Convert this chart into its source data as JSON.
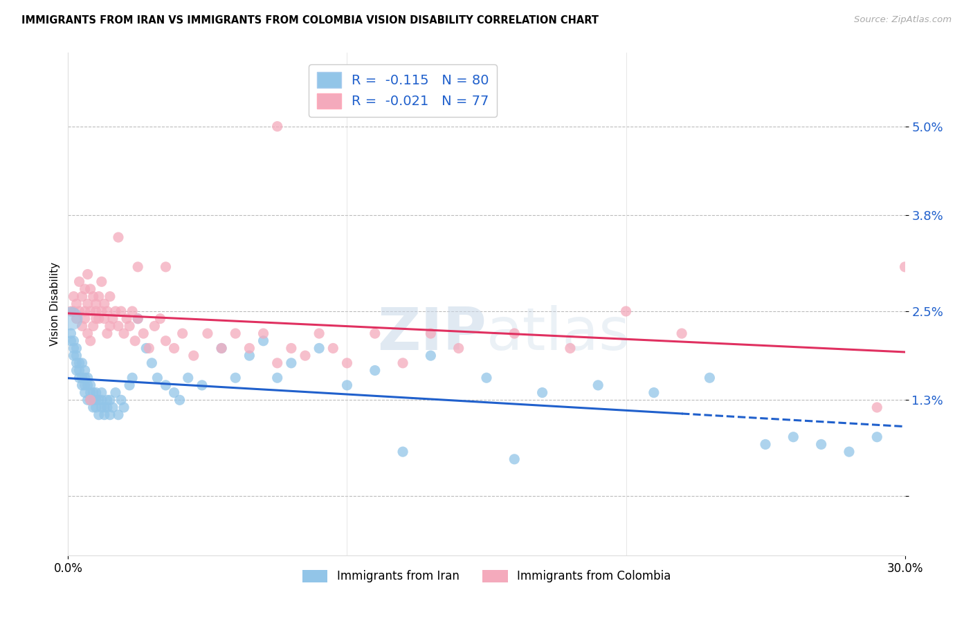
{
  "title": "IMMIGRANTS FROM IRAN VS IMMIGRANTS FROM COLOMBIA VISION DISABILITY CORRELATION CHART",
  "source": "Source: ZipAtlas.com",
  "ylabel": "Vision Disability",
  "xlim": [
    0.0,
    0.3
  ],
  "ylim": [
    -0.008,
    0.06
  ],
  "ytick_positions": [
    0.0,
    0.013,
    0.025,
    0.038,
    0.05
  ],
  "ytick_labels": [
    "",
    "1.3%",
    "2.5%",
    "3.8%",
    "5.0%"
  ],
  "legend_iran_R": "-0.115",
  "legend_iran_N": "80",
  "legend_colombia_R": "-0.021",
  "legend_colombia_N": "77",
  "iran_color": "#92C5E8",
  "colombia_color": "#F4AABC",
  "iran_line_color": "#2060CC",
  "colombia_line_color": "#E03060",
  "legend_R_color": "#2060CC",
  "legend_N_color": "#2060CC",
  "watermark_text": "ZIPatlas",
  "watermark_color": "#CCDDEE",
  "iran_x": [
    0.001,
    0.001,
    0.002,
    0.002,
    0.002,
    0.003,
    0.003,
    0.003,
    0.003,
    0.004,
    0.004,
    0.004,
    0.005,
    0.005,
    0.005,
    0.006,
    0.006,
    0.006,
    0.006,
    0.007,
    0.007,
    0.007,
    0.008,
    0.008,
    0.008,
    0.009,
    0.009,
    0.009,
    0.01,
    0.01,
    0.01,
    0.011,
    0.011,
    0.012,
    0.012,
    0.012,
    0.013,
    0.013,
    0.014,
    0.014,
    0.015,
    0.015,
    0.016,
    0.017,
    0.018,
    0.019,
    0.02,
    0.022,
    0.023,
    0.025,
    0.028,
    0.03,
    0.032,
    0.035,
    0.038,
    0.04,
    0.043,
    0.048,
    0.055,
    0.06,
    0.065,
    0.07,
    0.075,
    0.08,
    0.09,
    0.1,
    0.11,
    0.13,
    0.15,
    0.17,
    0.19,
    0.21,
    0.23,
    0.25,
    0.26,
    0.27,
    0.28,
    0.29,
    0.12,
    0.16
  ],
  "iran_y": [
    0.022,
    0.021,
    0.02,
    0.019,
    0.021,
    0.019,
    0.018,
    0.017,
    0.02,
    0.016,
    0.018,
    0.017,
    0.015,
    0.016,
    0.018,
    0.014,
    0.015,
    0.017,
    0.016,
    0.013,
    0.015,
    0.016,
    0.014,
    0.013,
    0.015,
    0.013,
    0.014,
    0.012,
    0.013,
    0.014,
    0.012,
    0.013,
    0.011,
    0.012,
    0.014,
    0.013,
    0.012,
    0.011,
    0.013,
    0.012,
    0.011,
    0.013,
    0.012,
    0.014,
    0.011,
    0.013,
    0.012,
    0.015,
    0.016,
    0.024,
    0.02,
    0.018,
    0.016,
    0.015,
    0.014,
    0.013,
    0.016,
    0.015,
    0.02,
    0.016,
    0.019,
    0.021,
    0.016,
    0.018,
    0.02,
    0.015,
    0.017,
    0.019,
    0.016,
    0.014,
    0.015,
    0.014,
    0.016,
    0.007,
    0.008,
    0.007,
    0.006,
    0.008,
    0.006,
    0.005
  ],
  "iran_large_x": [
    0.001
  ],
  "iran_large_y": [
    0.024
  ],
  "colombia_x": [
    0.001,
    0.002,
    0.002,
    0.003,
    0.003,
    0.004,
    0.004,
    0.005,
    0.005,
    0.006,
    0.006,
    0.006,
    0.007,
    0.007,
    0.007,
    0.008,
    0.008,
    0.008,
    0.009,
    0.009,
    0.01,
    0.01,
    0.01,
    0.011,
    0.011,
    0.012,
    0.012,
    0.013,
    0.013,
    0.014,
    0.014,
    0.015,
    0.015,
    0.016,
    0.017,
    0.018,
    0.019,
    0.02,
    0.021,
    0.022,
    0.023,
    0.024,
    0.025,
    0.027,
    0.029,
    0.031,
    0.033,
    0.035,
    0.038,
    0.041,
    0.045,
    0.05,
    0.055,
    0.06,
    0.065,
    0.07,
    0.075,
    0.08,
    0.085,
    0.09,
    0.095,
    0.1,
    0.11,
    0.12,
    0.13,
    0.14,
    0.16,
    0.18,
    0.2,
    0.22,
    0.075,
    0.018,
    0.025,
    0.035,
    0.008,
    0.29,
    0.3
  ],
  "colombia_y": [
    0.025,
    0.025,
    0.027,
    0.024,
    0.026,
    0.025,
    0.029,
    0.023,
    0.027,
    0.025,
    0.028,
    0.024,
    0.022,
    0.026,
    0.03,
    0.021,
    0.025,
    0.028,
    0.023,
    0.027,
    0.024,
    0.026,
    0.025,
    0.024,
    0.027,
    0.025,
    0.029,
    0.024,
    0.026,
    0.022,
    0.025,
    0.023,
    0.027,
    0.024,
    0.025,
    0.023,
    0.025,
    0.022,
    0.024,
    0.023,
    0.025,
    0.021,
    0.024,
    0.022,
    0.02,
    0.023,
    0.024,
    0.021,
    0.02,
    0.022,
    0.019,
    0.022,
    0.02,
    0.022,
    0.02,
    0.022,
    0.018,
    0.02,
    0.019,
    0.022,
    0.02,
    0.018,
    0.022,
    0.018,
    0.022,
    0.02,
    0.022,
    0.02,
    0.025,
    0.022,
    0.05,
    0.035,
    0.031,
    0.031,
    0.013,
    0.012,
    0.031
  ]
}
